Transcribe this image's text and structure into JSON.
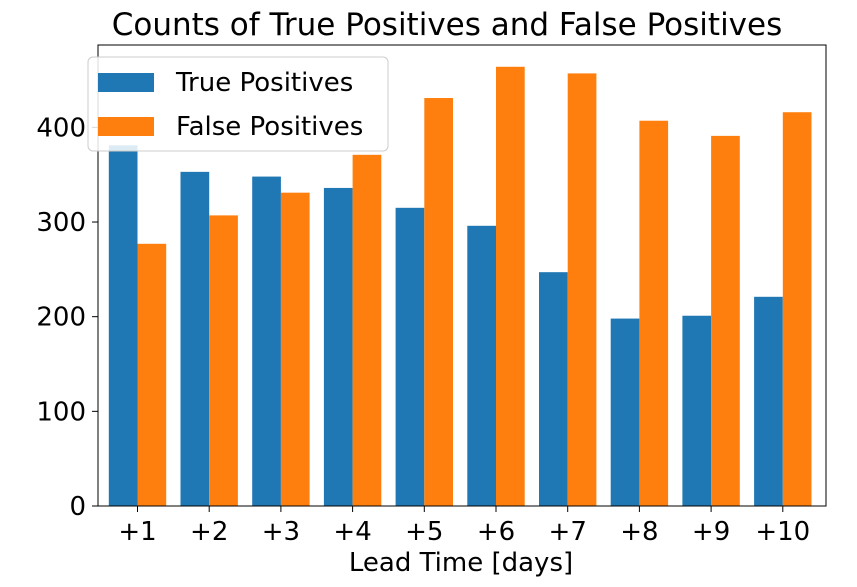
{
  "chart_data": {
    "type": "bar",
    "title": "Counts of True Positives and False Positives",
    "xlabel": "Lead Time [days]",
    "ylabel": "",
    "categories": [
      "+1",
      "+2",
      "+3",
      "+4",
      "+5",
      "+6",
      "+7",
      "+8",
      "+9",
      "+10"
    ],
    "series": [
      {
        "name": "True Positives",
        "color": "#1f77b4",
        "values": [
          381,
          353,
          348,
          336,
          315,
          296,
          247,
          198,
          201,
          221
        ]
      },
      {
        "name": "False Positives",
        "color": "#ff7f0e",
        "values": [
          277,
          307,
          331,
          371,
          431,
          464,
          457,
          407,
          391,
          416
        ]
      }
    ],
    "ylim": [
      0,
      487
    ],
    "yticks": [
      0,
      100,
      200,
      300,
      400
    ],
    "grid": false,
    "legend_position": "top-left"
  }
}
